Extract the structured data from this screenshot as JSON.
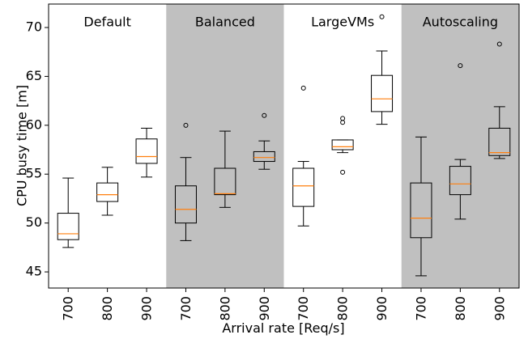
{
  "chart_data": {
    "type": "box",
    "xlabel": "Arrival rate [Req/s]",
    "ylabel": "CPU busy time [m]",
    "categories": [
      "700",
      "800",
      "900",
      "700",
      "800",
      "900",
      "700",
      "800",
      "900",
      "700",
      "800",
      "900"
    ],
    "groups": [
      {
        "name": "Default",
        "color": "#ffffff"
      },
      {
        "name": "Balanced",
        "color": "#c0c0c0"
      },
      {
        "name": "LargeVMs",
        "color": "#ffffff"
      },
      {
        "name": "Autoscaling",
        "color": "#c0c0c0"
      }
    ],
    "boxes": [
      {
        "whislo": 47.5,
        "q1": 48.3,
        "med": 48.9,
        "q3": 51.0,
        "whishi": 54.6,
        "fliers": []
      },
      {
        "whislo": 50.8,
        "q1": 52.2,
        "med": 52.9,
        "q3": 54.1,
        "whishi": 55.7,
        "fliers": []
      },
      {
        "whislo": 54.7,
        "q1": 56.1,
        "med": 56.8,
        "q3": 58.6,
        "whishi": 59.7,
        "fliers": []
      },
      {
        "whislo": 48.2,
        "q1": 50.0,
        "med": 51.4,
        "q3": 53.8,
        "whishi": 56.7,
        "fliers": [
          60.0
        ]
      },
      {
        "whislo": 51.6,
        "q1": 52.9,
        "med": 53.0,
        "q3": 55.6,
        "whishi": 59.4,
        "fliers": []
      },
      {
        "whislo": 55.5,
        "q1": 56.3,
        "med": 56.7,
        "q3": 57.3,
        "whishi": 58.4,
        "fliers": [
          61.0
        ]
      },
      {
        "whislo": 49.7,
        "q1": 51.7,
        "med": 53.8,
        "q3": 55.6,
        "whishi": 56.3,
        "fliers": [
          63.8
        ]
      },
      {
        "whislo": 57.2,
        "q1": 57.5,
        "med": 57.8,
        "q3": 58.5,
        "whishi": 58.5,
        "fliers": [
          55.2,
          60.3,
          60.7
        ]
      },
      {
        "whislo": 60.1,
        "q1": 61.4,
        "med": 62.7,
        "q3": 65.1,
        "whishi": 67.6,
        "fliers": [
          71.1
        ]
      },
      {
        "whislo": 44.6,
        "q1": 48.5,
        "med": 50.5,
        "q3": 54.1,
        "whishi": 58.8,
        "fliers": []
      },
      {
        "whislo": 50.4,
        "q1": 52.9,
        "med": 54.0,
        "q3": 55.8,
        "whishi": 56.5,
        "fliers": [
          66.1
        ]
      },
      {
        "whislo": 56.6,
        "q1": 56.9,
        "med": 57.2,
        "q3": 59.7,
        "whishi": 61.9,
        "fliers": [
          68.3
        ]
      }
    ],
    "box_color": "#000000",
    "median_color": "#ff7f0e",
    "ylim": [
      43.35,
      72.4
    ],
    "yticks": [
      45,
      50,
      55,
      60,
      65,
      70
    ]
  }
}
